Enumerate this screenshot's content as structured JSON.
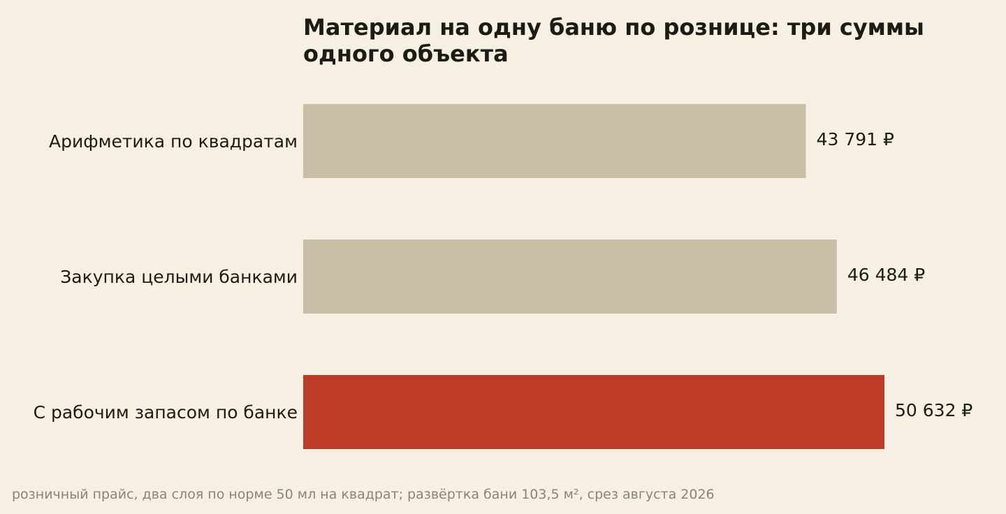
{
  "chart_data": {
    "type": "bar",
    "orientation": "horizontal",
    "title": "Материал на одну баню по рознице: три суммы одного объекта",
    "categories": [
      "Арифметика по квадратам",
      "Закупка целыми банками",
      "С рабочим запасом по банке"
    ],
    "values": [
      43791,
      46484,
      50632
    ],
    "value_labels": [
      "43 791 ₽",
      "46 484 ₽",
      "50 632 ₽"
    ],
    "bar_colors": [
      "#c9bfa7",
      "#c9bfa7",
      "#bd3c27"
    ],
    "xlim": [
      0,
      50632
    ],
    "grid": false,
    "xlabel": "",
    "ylabel": ""
  },
  "footnote": "розничный прайс, два слоя по норме 50 мл на квадрат; развёртка бани 103,5 м², срез августа 2026"
}
